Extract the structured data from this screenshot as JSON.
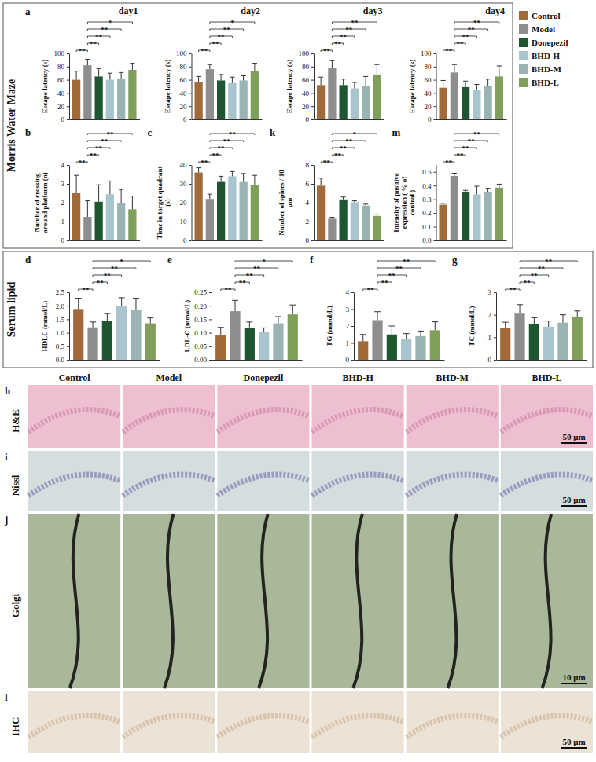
{
  "chart_data": [
    {
      "type": "bar",
      "panel": "a",
      "title": "day1",
      "y_label": "Escape latency (s)",
      "categories": [
        null,
        null,
        null,
        null,
        null,
        null
      ],
      "values": [
        60,
        82,
        65,
        60,
        62,
        75
      ],
      "errors": [
        13,
        9,
        12,
        10,
        9,
        10
      ],
      "colors": [
        "#a06a3b",
        "#8e8e8e",
        "#1e5631",
        "#a8c4cc",
        "#9ab3b3",
        "#7f9f5a"
      ],
      "ylim": [
        0,
        100
      ],
      "yticks": [
        0,
        20,
        40,
        60,
        80,
        100
      ],
      "tick_labels": "y",
      "comparisons": [
        {
          "groups": [
            0,
            1
          ],
          "label": "**"
        },
        {
          "groups": [
            1,
            2
          ],
          "label": "**"
        },
        {
          "groups": [
            1,
            3
          ],
          "label": "**"
        },
        {
          "groups": [
            1,
            4
          ],
          "label": "**"
        },
        {
          "groups": [
            1,
            5
          ],
          "label": "*"
        }
      ]
    },
    {
      "type": "bar",
      "title": "day2",
      "y_label": "Escape latency (s)",
      "categories": [
        null,
        null,
        null,
        null,
        null,
        null
      ],
      "values": [
        56,
        76,
        59,
        55,
        59,
        73
      ],
      "errors": [
        9,
        7,
        9,
        9,
        7,
        12
      ],
      "colors": [
        "#a06a3b",
        "#8e8e8e",
        "#1e5631",
        "#a8c4cc",
        "#9ab3b3",
        "#7f9f5a"
      ],
      "ylim": [
        0,
        100
      ],
      "yticks": [
        0,
        20,
        40,
        60,
        80,
        100
      ],
      "tick_labels": "y",
      "comparisons": [
        {
          "groups": [
            0,
            1
          ],
          "label": "**"
        },
        {
          "groups": [
            1,
            2
          ],
          "label": "**"
        },
        {
          "groups": [
            1,
            3
          ],
          "label": "**"
        },
        {
          "groups": [
            1,
            4
          ],
          "label": "**"
        },
        {
          "groups": [
            1,
            5
          ],
          "label": "*"
        }
      ]
    },
    {
      "type": "bar",
      "title": "day3",
      "y_label": "Escape latency (s)",
      "categories": [
        null,
        null,
        null,
        null,
        null,
        null
      ],
      "values": [
        52,
        78,
        52,
        47,
        51,
        68
      ],
      "errors": [
        12,
        11,
        9,
        9,
        14,
        15
      ],
      "colors": [
        "#a06a3b",
        "#8e8e8e",
        "#1e5631",
        "#a8c4cc",
        "#9ab3b3",
        "#7f9f5a"
      ],
      "ylim": [
        0,
        100
      ],
      "yticks": [
        0,
        20,
        40,
        60,
        80,
        100
      ],
      "tick_labels": "y",
      "comparisons": [
        {
          "groups": [
            0,
            1
          ],
          "label": "**"
        },
        {
          "groups": [
            1,
            2
          ],
          "label": "**"
        },
        {
          "groups": [
            1,
            3
          ],
          "label": "**"
        },
        {
          "groups": [
            1,
            4
          ],
          "label": "**"
        },
        {
          "groups": [
            1,
            5
          ],
          "label": "**"
        }
      ]
    },
    {
      "type": "bar",
      "title": "day4",
      "y_label": "Escape latency (s)",
      "categories": [
        null,
        null,
        null,
        null,
        null,
        null
      ],
      "values": [
        48,
        71,
        49,
        45,
        51,
        65
      ],
      "errors": [
        11,
        12,
        9,
        8,
        10,
        16
      ],
      "colors": [
        "#a06a3b",
        "#8e8e8e",
        "#1e5631",
        "#a8c4cc",
        "#9ab3b3",
        "#7f9f5a"
      ],
      "ylim": [
        0,
        100
      ],
      "yticks": [
        0,
        20,
        40,
        60,
        80,
        100
      ],
      "tick_labels": "y",
      "comparisons": [
        {
          "groups": [
            0,
            1
          ],
          "label": "**"
        },
        {
          "groups": [
            1,
            2
          ],
          "label": "**"
        },
        {
          "groups": [
            1,
            3
          ],
          "label": "**"
        },
        {
          "groups": [
            1,
            4
          ],
          "label": "**"
        },
        {
          "groups": [
            1,
            5
          ],
          "label": "**"
        }
      ]
    },
    {
      "type": "bar",
      "panel": "b",
      "y_label": "Number of crossing around platform (n)",
      "categories": [
        null,
        null,
        null,
        null,
        null,
        null
      ],
      "values": [
        2.5,
        1.25,
        2.05,
        2.45,
        2.0,
        1.65
      ],
      "errors": [
        0.95,
        0.85,
        0.9,
        0.7,
        0.7,
        0.7
      ],
      "colors": [
        "#a06a3b",
        "#8e8e8e",
        "#1e5631",
        "#a8c4cc",
        "#9ab3b3",
        "#7f9f5a"
      ],
      "ylim": [
        0,
        4
      ],
      "yticks": [
        0,
        1,
        2,
        3,
        4
      ],
      "tick_labels": "y",
      "comparisons": [
        {
          "groups": [
            0,
            1
          ],
          "label": "**"
        },
        {
          "groups": [
            1,
            2
          ],
          "label": "**"
        },
        {
          "groups": [
            1,
            3
          ],
          "label": "**"
        },
        {
          "groups": [
            1,
            4
          ],
          "label": "**"
        },
        {
          "groups": [
            1,
            5
          ],
          "label": "**"
        }
      ]
    },
    {
      "type": "bar",
      "panel": "c",
      "y_label": "Time in target quadrant (s)",
      "categories": [
        null,
        null,
        null,
        null,
        null,
        null
      ],
      "values": [
        36,
        22,
        31,
        34,
        31,
        29.5
      ],
      "errors": [
        2.5,
        2.5,
        3,
        2.5,
        4.5,
        5
      ],
      "colors": [
        "#a06a3b",
        "#8e8e8e",
        "#1e5631",
        "#a8c4cc",
        "#9ab3b3",
        "#7f9f5a"
      ],
      "ylim": [
        0,
        40
      ],
      "yticks": [
        0,
        10,
        20,
        30,
        40
      ],
      "tick_labels": "y",
      "comparisons": [
        {
          "groups": [
            0,
            1
          ],
          "label": "**"
        },
        {
          "groups": [
            1,
            2
          ],
          "label": "**"
        },
        {
          "groups": [
            1,
            3
          ],
          "label": "**"
        },
        {
          "groups": [
            1,
            4
          ],
          "label": "**"
        },
        {
          "groups": [
            1,
            5
          ],
          "label": "**"
        }
      ]
    },
    {
      "type": "bar",
      "panel": "k",
      "y_label": "Number of spines / 10 μm",
      "categories": [
        null,
        null,
        null,
        null,
        null,
        null
      ],
      "values": [
        5.8,
        2.3,
        4.35,
        4.05,
        3.7,
        2.6
      ],
      "errors": [
        0.8,
        0.15,
        0.25,
        0.15,
        0.15,
        0.2
      ],
      "colors": [
        "#a06a3b",
        "#8e8e8e",
        "#1e5631",
        "#a8c4cc",
        "#9ab3b3",
        "#7f9f5a"
      ],
      "ylim": [
        0,
        8
      ],
      "yticks": [
        0,
        2,
        4,
        6,
        8
      ],
      "tick_labels": "y",
      "comparisons": [
        {
          "groups": [
            0,
            1
          ],
          "label": "**"
        },
        {
          "groups": [
            1,
            2
          ],
          "label": "**"
        },
        {
          "groups": [
            1,
            3
          ],
          "label": "**"
        },
        {
          "groups": [
            1,
            4
          ],
          "label": "**"
        },
        {
          "groups": [
            1,
            5
          ],
          "label": "*"
        }
      ]
    },
    {
      "type": "bar",
      "panel": "m",
      "y_label": "Intensity of positive expression ( % of control )",
      "categories": [
        null,
        null,
        null,
        null,
        null,
        null
      ],
      "values": [
        0.26,
        0.47,
        0.35,
        0.335,
        0.35,
        0.385
      ],
      "errors": [
        0.01,
        0.02,
        0.015,
        0.06,
        0.03,
        0.025
      ],
      "colors": [
        "#a06a3b",
        "#8e8e8e",
        "#1e5631",
        "#a8c4cc",
        "#9ab3b3",
        "#7f9f5a"
      ],
      "ylim": [
        0,
        0.55
      ],
      "yticks": [
        {
          "value": 0,
          "label": "0.0"
        },
        0.1,
        0.2,
        0.3,
        0.4,
        0.5
      ],
      "tick_labels": "y",
      "comparisons": [
        {
          "groups": [
            0,
            1
          ],
          "label": "**"
        },
        {
          "groups": [
            1,
            2
          ],
          "label": "**"
        },
        {
          "groups": [
            1,
            3
          ],
          "label": "**"
        },
        {
          "groups": [
            1,
            4
          ],
          "label": "**"
        },
        {
          "groups": [
            1,
            5
          ],
          "label": "**"
        }
      ]
    },
    {
      "type": "bar",
      "panel": "d",
      "y_label": "HDLC (mmol/L)",
      "categories": [
        null,
        null,
        null,
        null,
        null,
        null
      ],
      "values": [
        1.88,
        1.2,
        1.43,
        2.0,
        1.83,
        1.35
      ],
      "errors": [
        0.4,
        0.2,
        0.28,
        0.3,
        0.45,
        0.2
      ],
      "colors": [
        "#a06a3b",
        "#8e8e8e",
        "#1e5631",
        "#a8c4cc",
        "#9ab3b3",
        "#7f9f5a"
      ],
      "ylim": [
        0,
        2.5
      ],
      "yticks": [
        {
          "value": 0,
          "label": "0.0"
        },
        0.5,
        {
          "value": 1,
          "label": "1.0"
        },
        1.5,
        {
          "value": 2,
          "label": "2.0"
        },
        2.5
      ],
      "tick_labels": "y",
      "comparisons": [
        {
          "groups": [
            0,
            1
          ],
          "label": "**"
        },
        {
          "groups": [
            1,
            2
          ],
          "label": "**"
        },
        {
          "groups": [
            1,
            3
          ],
          "label": "**"
        },
        {
          "groups": [
            1,
            4
          ],
          "label": "**"
        },
        {
          "groups": [
            1,
            5
          ],
          "label": "*"
        }
      ]
    },
    {
      "type": "bar",
      "panel": "e",
      "y_label": "LDL-C (mmol/L)",
      "categories": [
        null,
        null,
        null,
        null,
        null,
        null
      ],
      "values": [
        0.09,
        0.18,
        0.118,
        0.103,
        0.135,
        0.168
      ],
      "errors": [
        0.03,
        0.04,
        0.022,
        0.015,
        0.025,
        0.035
      ],
      "colors": [
        "#a06a3b",
        "#8e8e8e",
        "#1e5631",
        "#a8c4cc",
        "#9ab3b3",
        "#7f9f5a"
      ],
      "ylim": [
        0,
        0.25
      ],
      "yticks": [
        {
          "value": 0,
          "label": "0.00"
        },
        0.05,
        {
          "value": 0.1,
          "label": "0.10"
        },
        0.15,
        {
          "value": 0.2,
          "label": "0.20"
        },
        0.25
      ],
      "tick_labels": "y",
      "comparisons": [
        {
          "groups": [
            0,
            1
          ],
          "label": "**"
        },
        {
          "groups": [
            1,
            2
          ],
          "label": "**"
        },
        {
          "groups": [
            1,
            3
          ],
          "label": "**"
        },
        {
          "groups": [
            1,
            4
          ],
          "label": "**"
        },
        {
          "groups": [
            1,
            5
          ],
          "label": "*"
        }
      ]
    },
    {
      "type": "bar",
      "panel": "f",
      "y_label": "TG (mmol/L)",
      "categories": [
        null,
        null,
        null,
        null,
        null,
        null
      ],
      "values": [
        1.1,
        2.35,
        1.5,
        1.25,
        1.4,
        1.75
      ],
      "errors": [
        0.4,
        0.5,
        0.5,
        0.3,
        0.3,
        0.5
      ],
      "colors": [
        "#a06a3b",
        "#8e8e8e",
        "#1e5631",
        "#a8c4cc",
        "#9ab3b3",
        "#7f9f5a"
      ],
      "ylim": [
        0,
        4
      ],
      "yticks": [
        0,
        1,
        2,
        3,
        4
      ],
      "tick_labels": "y",
      "comparisons": [
        {
          "groups": [
            0,
            1
          ],
          "label": "**"
        },
        {
          "groups": [
            1,
            2
          ],
          "label": "**"
        },
        {
          "groups": [
            1,
            3
          ],
          "label": "**"
        },
        {
          "groups": [
            1,
            4
          ],
          "label": "**"
        },
        {
          "groups": [
            1,
            5
          ],
          "label": "**"
        }
      ]
    },
    {
      "type": "bar",
      "panel": "g",
      "y_label": "TC (mmol/L)",
      "categories": [
        null,
        null,
        null,
        null,
        null,
        null
      ],
      "values": [
        1.42,
        2.05,
        1.57,
        1.47,
        1.65,
        1.92
      ],
      "errors": [
        0.25,
        0.4,
        0.3,
        0.25,
        0.35,
        0.25
      ],
      "colors": [
        "#a06a3b",
        "#8e8e8e",
        "#1e5631",
        "#a8c4cc",
        "#9ab3b3",
        "#7f9f5a"
      ],
      "ylim": [
        0,
        3
      ],
      "yticks": [
        0,
        1,
        2,
        3
      ],
      "tick_labels": "y",
      "comparisons": [
        {
          "groups": [
            0,
            1
          ],
          "label": "**"
        },
        {
          "groups": [
            1,
            2
          ],
          "label": "**"
        },
        {
          "groups": [
            1,
            3
          ],
          "label": "**"
        },
        {
          "groups": [
            1,
            4
          ],
          "label": "**"
        },
        {
          "groups": [
            1,
            5
          ],
          "label": "**"
        }
      ]
    }
  ],
  "figure": {
    "sections": [
      {
        "label": "Morris Water Maze",
        "charts": [
          0,
          1,
          2,
          3,
          4,
          5,
          6,
          7
        ]
      },
      {
        "label": "Serum lipid",
        "charts": [
          8,
          9,
          10,
          11
        ]
      }
    ],
    "legend": {
      "position": "right",
      "entries": [
        {
          "name": "Control",
          "color": "#a06a3b"
        },
        {
          "name": "Model",
          "color": "#8e8e8e"
        },
        {
          "name": "Donepezil",
          "color": "#1e5631"
        },
        {
          "name": "BHD-H",
          "color": "#a8c4cc"
        },
        {
          "name": "BHD-M",
          "color": "#9ab3b3"
        },
        {
          "name": "BHD-L",
          "color": "#7f9f5a"
        }
      ]
    },
    "images": {
      "columns": [
        "Control",
        "Model",
        "Donepezil",
        "BHD-H",
        "BHD-M",
        "BHD-L"
      ],
      "rows": [
        {
          "panel": "h",
          "label": "H&E",
          "scale_bar": "50 μm"
        },
        {
          "panel": "i",
          "label": "Nissl",
          "scale_bar": "50 μm"
        },
        {
          "panel": "j",
          "label": "Golgi",
          "scale_bar": "10 μm"
        },
        {
          "panel": "l",
          "label": "IHC",
          "scale_bar": "50 μm"
        }
      ]
    }
  }
}
